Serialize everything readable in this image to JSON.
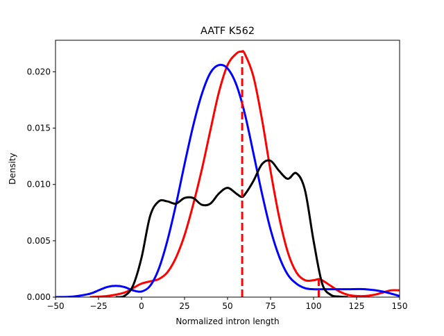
{
  "chart_data": {
    "type": "line",
    "title": "AATF K562",
    "xlabel": "Normalized intron length",
    "ylabel": "Density",
    "xlim": [
      -50,
      150
    ],
    "ylim": [
      0,
      0.0228
    ],
    "grid": false,
    "x_ticks": [
      {
        "value": -50,
        "label": "−50"
      },
      {
        "value": -25,
        "label": "−25"
      },
      {
        "value": 0,
        "label": "0"
      },
      {
        "value": 25,
        "label": "25"
      },
      {
        "value": 50,
        "label": "50"
      },
      {
        "value": 75,
        "label": "75"
      },
      {
        "value": 100,
        "label": "100"
      },
      {
        "value": 125,
        "label": "125"
      },
      {
        "value": 150,
        "label": "150"
      }
    ],
    "y_ticks": [
      {
        "value": 0,
        "label": "0.000"
      },
      {
        "value": 0.005,
        "label": "0.005"
      },
      {
        "value": 0.01,
        "label": "0.010"
      },
      {
        "value": 0.015,
        "label": "0.015"
      },
      {
        "value": 0.02,
        "label": "0.020"
      }
    ],
    "series": [
      {
        "color": "#ff0000",
        "x": [
          -30,
          -20,
          -10,
          -5,
          0,
          5,
          10,
          15,
          20,
          25,
          30,
          35,
          40,
          45,
          50,
          55,
          58,
          60,
          65,
          70,
          75,
          80,
          85,
          90,
          95,
          100,
          103,
          105,
          110,
          115,
          120,
          125,
          130,
          135,
          140,
          145,
          150
        ],
        "y": [
          0,
          0.0001,
          0.0004,
          0.0008,
          0.0012,
          0.0014,
          0.0016,
          0.0022,
          0.0035,
          0.0055,
          0.0082,
          0.0113,
          0.0148,
          0.0182,
          0.0206,
          0.0216,
          0.0218,
          0.0216,
          0.0196,
          0.0158,
          0.0112,
          0.0071,
          0.004,
          0.0022,
          0.0015,
          0.0015,
          0.0016,
          0.0015,
          0.001,
          0.0005,
          0.0002,
          0.0001,
          0.0001,
          0.0002,
          0.0004,
          0.0006,
          0.0006
        ]
      },
      {
        "color": "#0000ff",
        "x": [
          -50,
          -40,
          -30,
          -25,
          -20,
          -15,
          -10,
          -5,
          0,
          5,
          10,
          15,
          20,
          25,
          30,
          35,
          40,
          45,
          50,
          55,
          60,
          65,
          70,
          75,
          80,
          85,
          90,
          95,
          100,
          105,
          110,
          120,
          130,
          140,
          150
        ],
        "y": [
          0,
          5e-05,
          0.0003,
          0.0006,
          0.0009,
          0.001,
          0.0009,
          0.0006,
          0.0005,
          0.001,
          0.0025,
          0.005,
          0.0082,
          0.0118,
          0.0152,
          0.018,
          0.0199,
          0.0206,
          0.0203,
          0.0189,
          0.0163,
          0.0128,
          0.0092,
          0.006,
          0.0036,
          0.002,
          0.0012,
          0.0008,
          0.0007,
          0.0007,
          0.0007,
          0.0007,
          0.0007,
          0.0005,
          0.0001
        ]
      },
      {
        "color": "#000000",
        "x": [
          -15,
          -10,
          -5,
          0,
          5,
          10,
          15,
          20,
          25,
          30,
          35,
          40,
          45,
          50,
          55,
          58,
          60,
          65,
          70,
          75,
          80,
          85,
          90,
          95,
          100,
          105,
          110,
          115,
          120
        ],
        "y": [
          0,
          0.0001,
          0.001,
          0.0035,
          0.0072,
          0.0085,
          0.0085,
          0.0083,
          0.0088,
          0.0088,
          0.0082,
          0.0083,
          0.0092,
          0.0097,
          0.0092,
          0.0089,
          0.0091,
          0.0103,
          0.0118,
          0.0121,
          0.0112,
          0.0105,
          0.011,
          0.0095,
          0.005,
          0.0012,
          0.0002,
          5e-05,
          0
        ]
      }
    ],
    "vlines": [
      {
        "x": 58.5,
        "ymax": 0.0218,
        "color": "#ff0000"
      },
      {
        "x": 103,
        "ymax": 0.0016,
        "color": "#ff0000"
      }
    ]
  }
}
